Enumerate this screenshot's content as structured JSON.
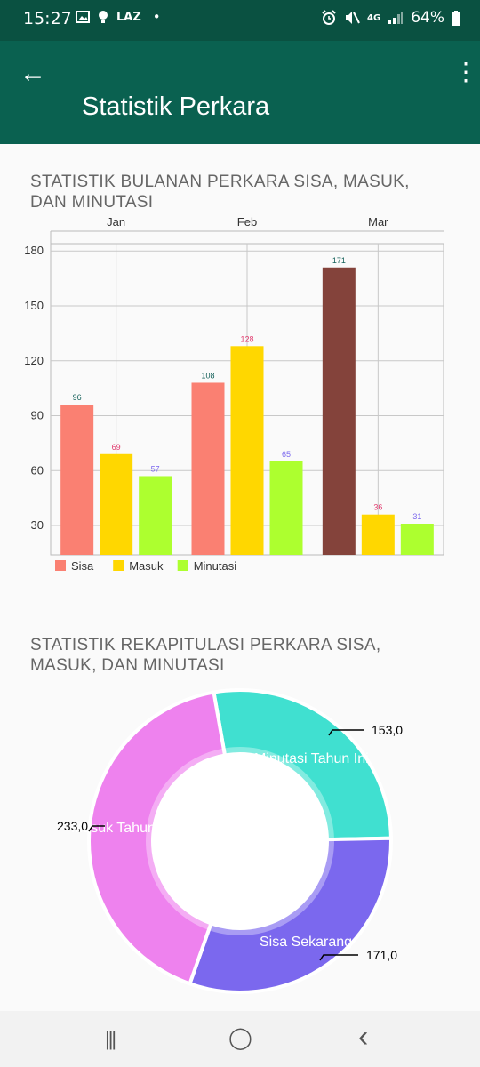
{
  "status_bar": {
    "time": "15:27",
    "left_icons": [
      "image-icon",
      "bulb-icon"
    ],
    "carrier_text": "LAZ",
    "dot": "•",
    "network": "4G",
    "battery": "64%"
  },
  "app_bar": {
    "back_glyph": "←",
    "title": "Statistik Perkara",
    "menu_glyph": "⋮"
  },
  "bar_section": {
    "title": "STATISTIK BULANAN PERKARA SISA, MASUK, DAN MINUTASI"
  },
  "pie_section": {
    "title": "STATISTIK REKAPITULASI PERKARA SISA, MASUK, DAN MINUTASI"
  },
  "chart_data": [
    {
      "type": "bar",
      "categories": [
        "Jan",
        "Feb",
        "Mar"
      ],
      "series": [
        {
          "name": "Sisa",
          "values": [
            96,
            108,
            171
          ],
          "colors": [
            "#fa8072",
            "#fa8072",
            "#84433b"
          ],
          "label_color": "#15615a"
        },
        {
          "name": "Masuk",
          "values": [
            69,
            128,
            36
          ],
          "colors": [
            "#ffd700",
            "#ffd700",
            "#ffd700"
          ],
          "label_color": "#e13b6e"
        },
        {
          "name": "Minutasi",
          "values": [
            57,
            65,
            31
          ],
          "colors": [
            "#adff2f",
            "#adff2f",
            "#adff2f"
          ],
          "label_color": "#7b68ee"
        }
      ],
      "y_ticks": [
        "30",
        "60",
        "90",
        "120",
        "150",
        "180"
      ],
      "ylim": [
        14,
        184
      ],
      "grid": true,
      "legend_placement": "bottom-left"
    },
    {
      "type": "pie",
      "variant": "donut",
      "slices": [
        {
          "label": "Minutasi Tahun Ini",
          "value": 153,
          "value_label": "153,0",
          "color": "#40e0d0"
        },
        {
          "label": "Sisa Sekarang",
          "value": 171,
          "value_label": "171,0",
          "color": "#7b68ee"
        },
        {
          "label": "Masuk Tahun Ini",
          "value": 233,
          "value_label": "233,0",
          "color": "#ee82ee"
        }
      ]
    }
  ],
  "nav_bar": {
    "recents_glyph": "|||",
    "home_glyph": "◯",
    "back_glyph": "‹"
  }
}
